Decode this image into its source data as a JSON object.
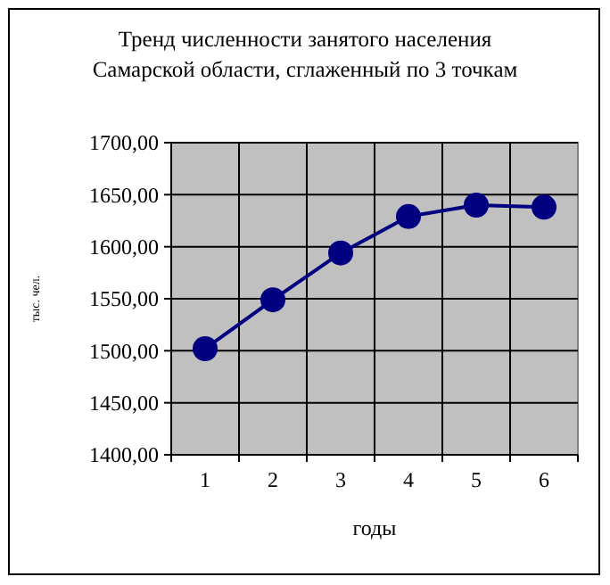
{
  "chart_data": {
    "type": "line",
    "title": "Тренд численности занятого населения\nСамарской области, сглаженный по 3 точкам",
    "xlabel": "годы",
    "ylabel": "тыс. чел.",
    "categories": [
      "1",
      "2",
      "3",
      "4",
      "5",
      "6"
    ],
    "series": [
      {
        "color": "#000080",
        "values": [
          1502,
          1549,
          1594,
          1629,
          1640,
          1638
        ]
      }
    ],
    "ylim": [
      1400,
      1700
    ],
    "yticks": [
      {
        "value": 1400,
        "label": "1400,00"
      },
      {
        "value": 1450,
        "label": "1450,00"
      },
      {
        "value": 1500,
        "label": "1500,00"
      },
      {
        "value": 1550,
        "label": "1550,00"
      },
      {
        "value": 1600,
        "label": "1600,00"
      },
      {
        "value": 1650,
        "label": "1650,00"
      },
      {
        "value": 1700,
        "label": "1700,00"
      }
    ],
    "grid": true,
    "marker": "circle",
    "line_style": "solid"
  }
}
